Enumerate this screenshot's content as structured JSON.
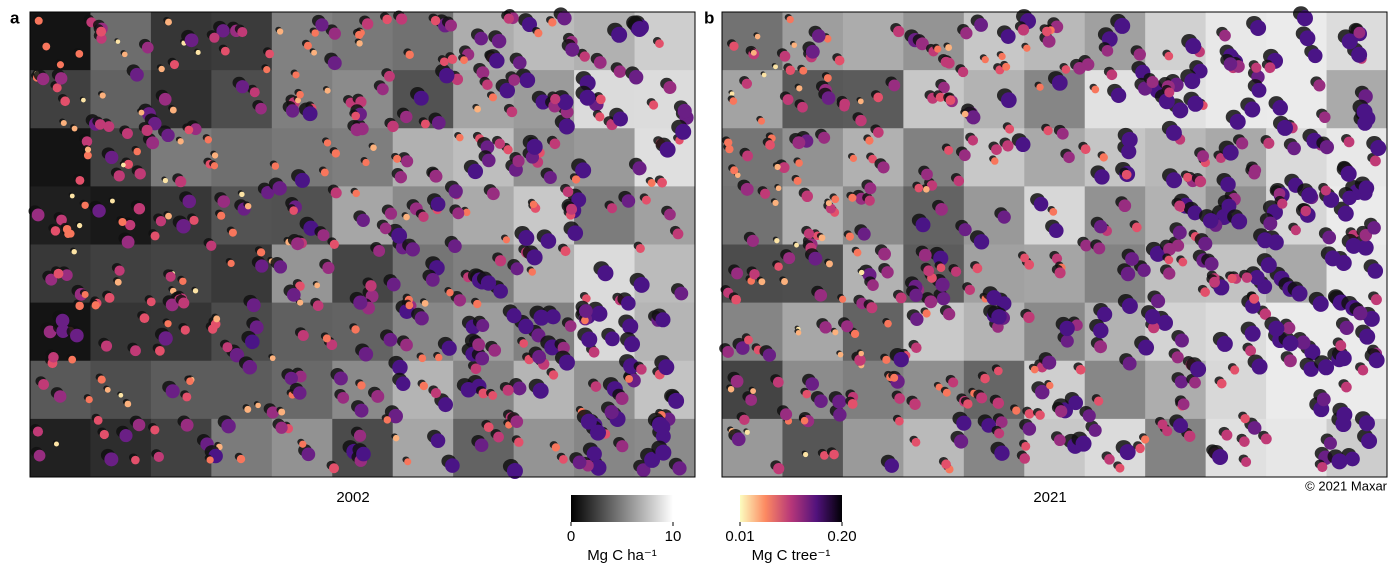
{
  "panels": [
    {
      "label": "a",
      "year": "2002"
    },
    {
      "label": "b",
      "year": "2021"
    }
  ],
  "credit": "© 2021 Maxar",
  "colorbars": [
    {
      "unit": "Mg C ha⁻¹",
      "lim": [
        0,
        10
      ],
      "ticks": [
        0,
        10
      ],
      "colors": [
        "#000000",
        "#ffffff"
      ]
    },
    {
      "unit": "Mg C tree⁻¹",
      "lim": [
        0.01,
        0.2
      ],
      "ticks": [
        0.01,
        {
          "value": 0.2,
          "label": "0.20"
        }
      ],
      "colors": [
        "#fcfdbf",
        "#fc8961",
        "#b73779",
        "#51127c",
        "#000004"
      ]
    }
  ]
}
